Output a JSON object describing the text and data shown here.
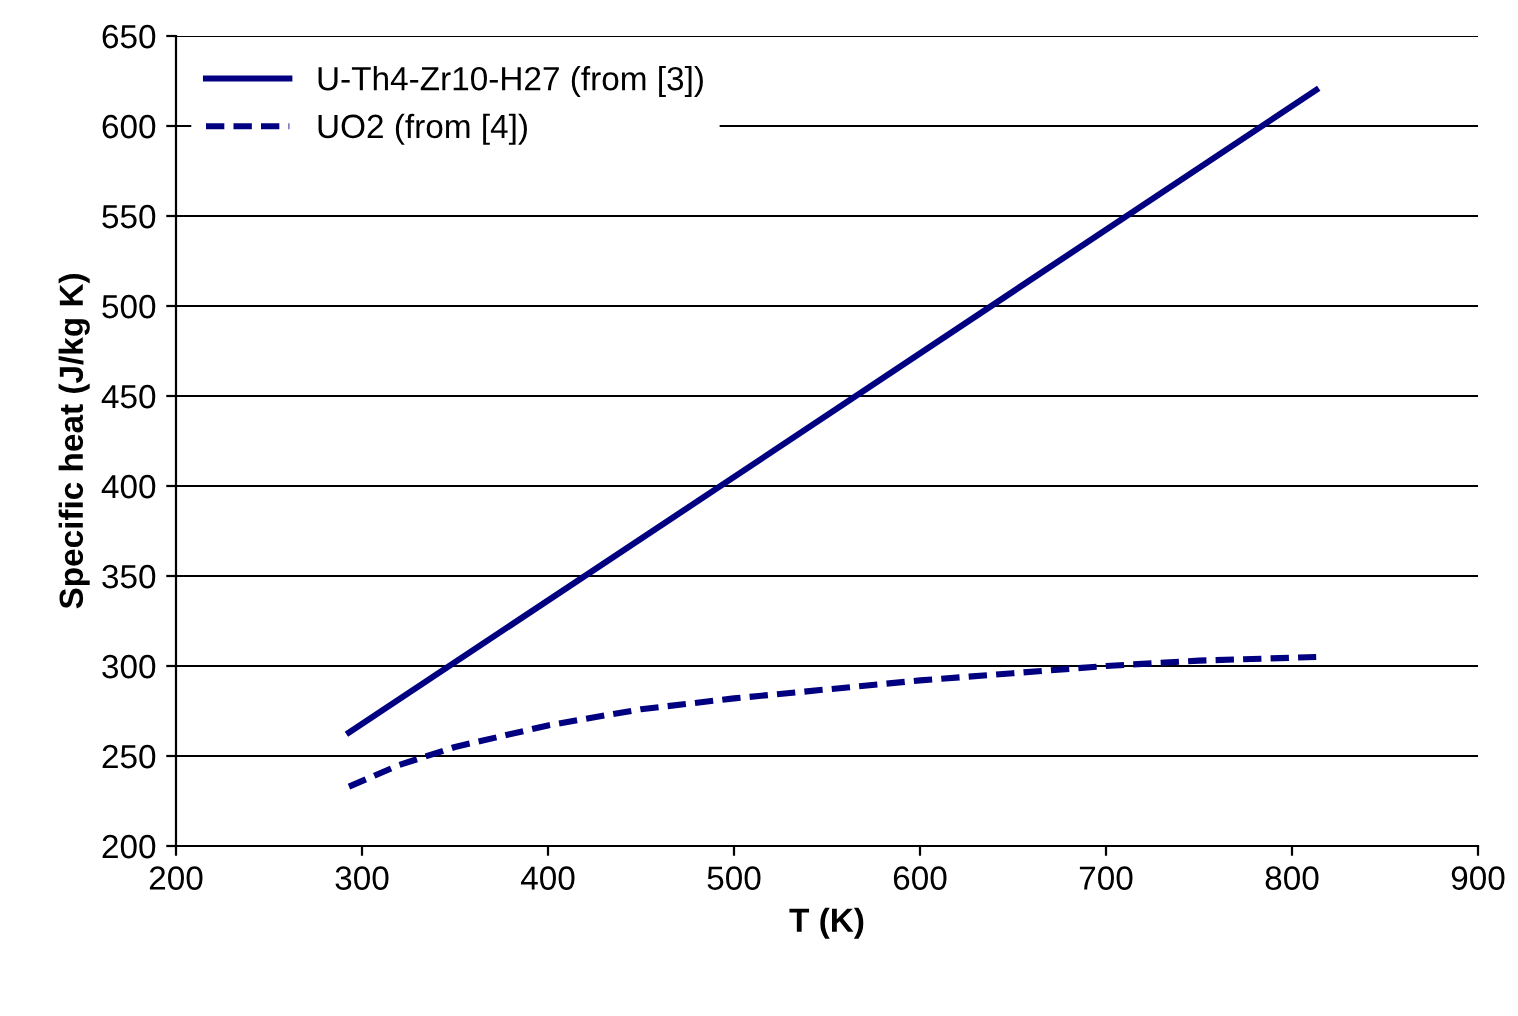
{
  "chart_data": {
    "type": "line",
    "xlabel": "T (K)",
    "ylabel": "Specific heat (J/kg K)",
    "xlim": [
      200,
      900
    ],
    "xticks": [
      200,
      300,
      400,
      500,
      600,
      700,
      800,
      900
    ],
    "ylim": [
      200,
      650
    ],
    "yticks": [
      200,
      250,
      300,
      350,
      400,
      450,
      500,
      550,
      600,
      650
    ],
    "grid": "y",
    "legend": "top left",
    "marker": "none",
    "series": [
      {
        "name": "U-Th4-Zr10-H27 (from [3])",
        "color": "#000080",
        "line_style": "solid",
        "x": [
          293,
          500,
          813
        ],
        "values": [
          263,
          405,
          620
        ]
      },
      {
        "name": "UO2 (from [4])",
        "color": "#000080",
        "line_style": "dashed",
        "x": [
          293,
          320,
          350,
          400,
          450,
          500,
          550,
          600,
          650,
          700,
          750,
          813
        ],
        "values": [
          233,
          245,
          255,
          267,
          276,
          282,
          287,
          292,
          296,
          300,
          303,
          305
        ]
      }
    ]
  }
}
